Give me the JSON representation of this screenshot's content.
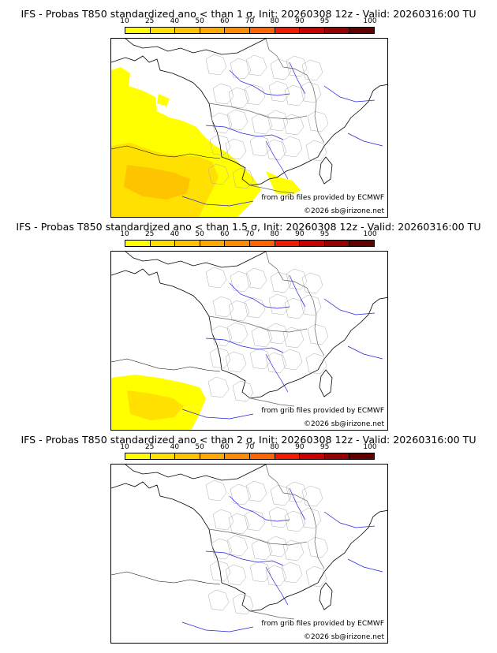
{
  "legend": {
    "ticks": [
      "10",
      "25",
      "40",
      "50",
      "60",
      "70",
      "80",
      "90",
      "95",
      "100"
    ],
    "colors": [
      "#FFFF00",
      "#FFE000",
      "#FFC400",
      "#FFA800",
      "#FF8C00",
      "#FF6400",
      "#EE1C00",
      "#C80000",
      "#960000",
      "#640000"
    ]
  },
  "panels": [
    {
      "title": "IFS - Probas T850  standardized ano < than 1 σ, Init: 20260308 12z - Valid: 20260316:00 TU",
      "source": "from grib files provided by ECMWF",
      "copyright": "©2026 sb@irizone.net",
      "coverage": "large"
    },
    {
      "title": "IFS - Probas T850  standardized ano < than 1.5 σ, Init: 20260308 12z - Valid: 20260316:00 TU",
      "source": "from grib files provided by ECMWF",
      "copyright": "©2026 sb@irizone.net",
      "coverage": "medium"
    },
    {
      "title": "IFS - Probas T850  standardized ano < than 2 σ, Init: 20260308 12z - Valid: 20260316:00 TU",
      "source": "from grib files provided by ECMWF",
      "copyright": "©2026 sb@irizone.net",
      "coverage": "none"
    }
  ]
}
